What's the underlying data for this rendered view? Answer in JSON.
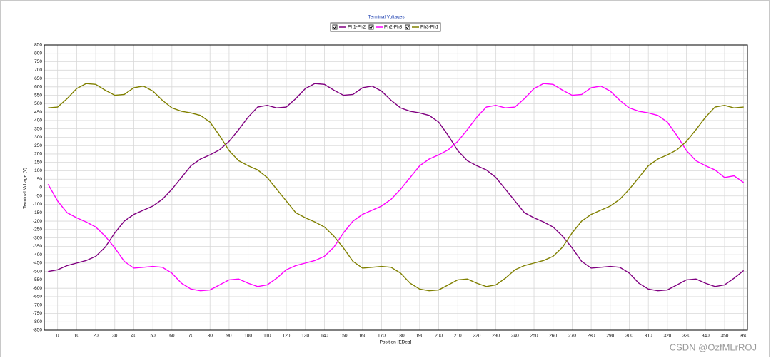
{
  "chart_data": {
    "type": "line",
    "title": "Terminal Voltages",
    "x_label": "Position [EDeg]",
    "y_label": "Terminal Voltage [V]",
    "xlim": [
      -7,
      362
    ],
    "ylim": [
      -850,
      850
    ],
    "xticks": [
      0,
      10,
      20,
      30,
      40,
      50,
      60,
      70,
      80,
      90,
      100,
      110,
      120,
      130,
      140,
      150,
      160,
      170,
      180,
      190,
      200,
      210,
      220,
      230,
      240,
      250,
      260,
      270,
      280,
      290,
      300,
      310,
      320,
      330,
      340,
      350,
      360
    ],
    "yticks": [
      -850,
      -800,
      -750,
      -700,
      -650,
      -600,
      -550,
      -500,
      -450,
      -400,
      -350,
      -300,
      -250,
      -200,
      -150,
      -100,
      -50,
      0,
      50,
      100,
      150,
      200,
      250,
      300,
      350,
      400,
      450,
      500,
      550,
      600,
      650,
      700,
      750,
      800,
      850
    ],
    "grid": true,
    "x": [
      -5,
      0,
      5,
      10,
      15,
      20,
      25,
      30,
      35,
      40,
      45,
      50,
      55,
      60,
      65,
      70,
      75,
      80,
      85,
      90,
      95,
      100,
      105,
      110,
      115,
      120,
      125,
      130,
      135,
      140,
      145,
      150,
      155,
      160,
      165,
      170,
      175,
      180,
      185,
      190,
      195,
      200,
      205,
      210,
      215,
      220,
      225,
      230,
      235,
      240,
      245,
      250,
      255,
      260,
      265,
      270,
      275,
      280,
      285,
      290,
      295,
      300,
      305,
      310,
      315,
      320,
      325,
      330,
      335,
      340,
      345,
      350,
      355,
      360
    ],
    "series": [
      {
        "name": "Ph1-Ph2",
        "color": "#800080",
        "values": [
          -500,
          -490,
          -465,
          -450,
          -435,
          -410,
          -355,
          -270,
          -200,
          -160,
          -135,
          -110,
          -70,
          -10,
          60,
          130,
          170,
          195,
          225,
          275,
          345,
          420,
          480,
          490,
          475,
          480,
          530,
          590,
          620,
          615,
          580,
          550,
          555,
          595,
          605,
          575,
          520,
          475,
          455,
          445,
          430,
          390,
          310,
          220,
          160,
          130,
          105,
          60,
          -10,
          -80,
          -150,
          -180,
          -205,
          -235,
          -290,
          -360,
          -440,
          -480,
          -475,
          -470,
          -475,
          -510,
          -570,
          -605,
          -615,
          -610,
          -580,
          -550,
          -545,
          -570,
          -590,
          -580,
          -540,
          -495
        ]
      },
      {
        "name": "Ph2-Ph3",
        "color": "#ff00ff",
        "values": [
          20,
          -80,
          -150,
          -180,
          -205,
          -235,
          -290,
          -360,
          -440,
          -480,
          -475,
          -470,
          -475,
          -510,
          -570,
          -605,
          -615,
          -610,
          -580,
          -550,
          -545,
          -570,
          -590,
          -580,
          -540,
          -490,
          -465,
          -450,
          -435,
          -410,
          -355,
          -270,
          -200,
          -160,
          -135,
          -110,
          -70,
          -10,
          60,
          130,
          170,
          195,
          225,
          275,
          345,
          420,
          480,
          490,
          475,
          480,
          530,
          590,
          620,
          615,
          580,
          550,
          555,
          595,
          605,
          575,
          520,
          475,
          455,
          445,
          430,
          390,
          310,
          220,
          160,
          130,
          105,
          60,
          70,
          30
        ]
      },
      {
        "name": "Ph3-Ph1",
        "color": "#808000",
        "values": [
          475,
          480,
          530,
          590,
          620,
          615,
          580,
          550,
          555,
          595,
          605,
          575,
          520,
          475,
          455,
          445,
          430,
          390,
          310,
          220,
          160,
          130,
          105,
          60,
          -10,
          -80,
          -150,
          -180,
          -205,
          -235,
          -290,
          -360,
          -440,
          -480,
          -475,
          -470,
          -475,
          -510,
          -570,
          -605,
          -615,
          -610,
          -580,
          -550,
          -545,
          -570,
          -590,
          -580,
          -540,
          -490,
          -465,
          -450,
          -435,
          -410,
          -355,
          -270,
          -200,
          -160,
          -135,
          -110,
          -70,
          -10,
          60,
          130,
          170,
          195,
          225,
          275,
          345,
          420,
          480,
          490,
          475,
          480
        ]
      }
    ]
  },
  "watermark": "CSDN @OzfMLrROJ"
}
